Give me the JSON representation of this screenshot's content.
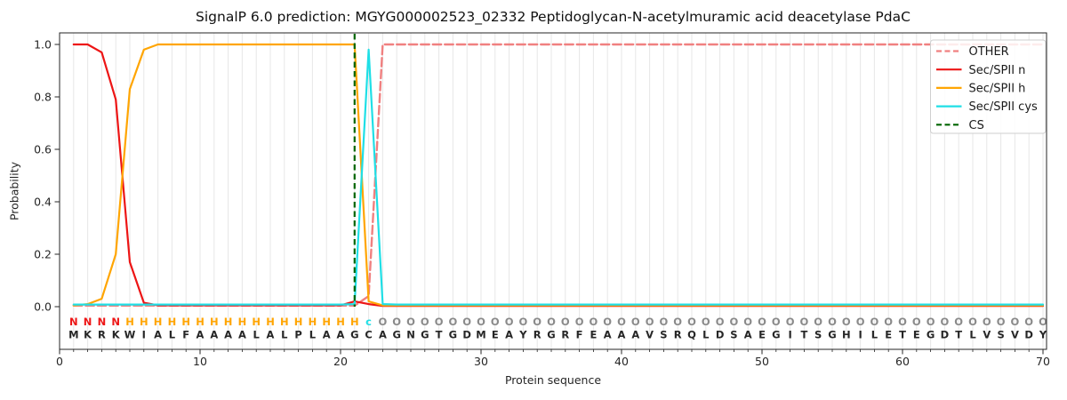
{
  "figure": {
    "title": "SignalP 6.0 prediction: MGYG000002523_02332 Peptidoglycan-N-acetylmuramic acid deacetylase PdaC",
    "xlabel": "Protein sequence",
    "ylabel": "Probability"
  },
  "colors": {
    "grid": "#e7e7e7",
    "axis": "#262626",
    "tick_label": "#262626",
    "residue": "#262626",
    "legend_border": "#cfcfcf",
    "legend_background": "#ffffff"
  },
  "legend": {
    "items": [
      {
        "label": "OTHER",
        "color": "#f08080",
        "dash": "dashed"
      },
      {
        "label": "Sec/SPII n",
        "color": "#ed1515",
        "dash": "solid"
      },
      {
        "label": "Sec/SPII h",
        "color": "#ffa502",
        "dash": "solid"
      },
      {
        "label": "Sec/SPII cys",
        "color": "#1fdfe6",
        "dash": "solid"
      },
      {
        "label": "CS",
        "color": "#006400",
        "dash": "dashed"
      }
    ]
  },
  "chart_data": {
    "type": "line",
    "title": "SignalP 6.0 prediction: MGYG000002523_02332 Peptidoglycan-N-acetylmuramic acid deacetylase PdaC",
    "xlabel": "Protein sequence",
    "ylabel": "Probability",
    "xlim": [
      0,
      70.25
    ],
    "ylim": [
      -0.16,
      1.04
    ],
    "x_ticks": [
      0,
      10,
      20,
      30,
      40,
      50,
      60,
      70
    ],
    "y_ticks": [
      0.0,
      0.2,
      0.4,
      0.6,
      0.8,
      1.0
    ],
    "grid": "vertical gridline at every residue position 1-70",
    "legend_position": "upper right",
    "x": [
      1,
      2,
      3,
      4,
      5,
      6,
      7,
      8,
      9,
      10,
      11,
      12,
      13,
      14,
      15,
      16,
      17,
      18,
      19,
      20,
      21,
      22,
      23,
      24,
      25,
      26,
      27,
      28,
      29,
      30,
      31,
      32,
      33,
      34,
      35,
      36,
      37,
      38,
      39,
      40,
      41,
      42,
      43,
      44,
      45,
      46,
      47,
      48,
      49,
      50,
      51,
      52,
      53,
      54,
      55,
      56,
      57,
      58,
      59,
      60,
      61,
      62,
      63,
      64,
      65,
      66,
      67,
      68,
      69,
      70
    ],
    "series": [
      {
        "name": "OTHER",
        "color": "#f08080",
        "dash": "dashed",
        "values": [
          0.004,
          0.004,
          0.004,
          0.004,
          0.004,
          0.004,
          0.004,
          0.004,
          0.004,
          0.004,
          0.004,
          0.004,
          0.004,
          0.004,
          0.004,
          0.004,
          0.004,
          0.004,
          0.004,
          0.004,
          0.004,
          0.04,
          1.0,
          1.0,
          1.0,
          1.0,
          1.0,
          1.0,
          1.0,
          1.0,
          1.0,
          1.0,
          1.0,
          1.0,
          1.0,
          1.0,
          1.0,
          1.0,
          1.0,
          1.0,
          1.0,
          1.0,
          1.0,
          1.0,
          1.0,
          1.0,
          1.0,
          1.0,
          1.0,
          1.0,
          1.0,
          1.0,
          1.0,
          1.0,
          1.0,
          1.0,
          1.0,
          1.0,
          1.0,
          1.0,
          1.0,
          1.0,
          1.0,
          1.0,
          1.0,
          1.0,
          1.0,
          1.0,
          1.0,
          1.0
        ]
      },
      {
        "name": "Sec/SPII n",
        "color": "#ed1515",
        "dash": "solid",
        "values": [
          1.0,
          1.0,
          0.97,
          0.79,
          0.17,
          0.015,
          0.005,
          0.005,
          0.005,
          0.005,
          0.005,
          0.005,
          0.005,
          0.005,
          0.005,
          0.005,
          0.005,
          0.005,
          0.005,
          0.005,
          0.02,
          0.01,
          0.003,
          0.003,
          0.003,
          0.003,
          0.003,
          0.003,
          0.003,
          0.003,
          0.003,
          0.003,
          0.003,
          0.003,
          0.003,
          0.003,
          0.003,
          0.003,
          0.003,
          0.003,
          0.003,
          0.003,
          0.003,
          0.003,
          0.003,
          0.003,
          0.003,
          0.003,
          0.003,
          0.003,
          0.003,
          0.003,
          0.003,
          0.003,
          0.003,
          0.003,
          0.003,
          0.003,
          0.003,
          0.003,
          0.003,
          0.003,
          0.003,
          0.003,
          0.003,
          0.003,
          0.003,
          0.003,
          0.003,
          0.003
        ]
      },
      {
        "name": "Sec/SPII h",
        "color": "#ffa502",
        "dash": "solid",
        "values": [
          0.005,
          0.01,
          0.03,
          0.2,
          0.83,
          0.98,
          1.0,
          1.0,
          1.0,
          1.0,
          1.0,
          1.0,
          1.0,
          1.0,
          1.0,
          1.0,
          1.0,
          1.0,
          1.0,
          1.0,
          1.0,
          0.02,
          0.005,
          0.005,
          0.005,
          0.005,
          0.005,
          0.005,
          0.005,
          0.005,
          0.005,
          0.005,
          0.005,
          0.005,
          0.005,
          0.005,
          0.005,
          0.005,
          0.005,
          0.005,
          0.005,
          0.005,
          0.005,
          0.005,
          0.005,
          0.005,
          0.005,
          0.005,
          0.005,
          0.005,
          0.005,
          0.005,
          0.005,
          0.005,
          0.005,
          0.005,
          0.005,
          0.005,
          0.005,
          0.005,
          0.005,
          0.005,
          0.005,
          0.005,
          0.005,
          0.005,
          0.005,
          0.005,
          0.005,
          0.005
        ]
      },
      {
        "name": "Sec/SPII cys",
        "color": "#1fdfe6",
        "dash": "solid",
        "values": [
          0.008,
          0.008,
          0.008,
          0.008,
          0.008,
          0.008,
          0.008,
          0.008,
          0.008,
          0.008,
          0.008,
          0.008,
          0.008,
          0.008,
          0.008,
          0.008,
          0.008,
          0.008,
          0.008,
          0.008,
          0.01,
          0.98,
          0.01,
          0.008,
          0.008,
          0.008,
          0.008,
          0.008,
          0.008,
          0.008,
          0.008,
          0.008,
          0.008,
          0.008,
          0.008,
          0.008,
          0.008,
          0.008,
          0.008,
          0.008,
          0.008,
          0.008,
          0.008,
          0.008,
          0.008,
          0.008,
          0.008,
          0.008,
          0.008,
          0.008,
          0.008,
          0.008,
          0.008,
          0.008,
          0.008,
          0.008,
          0.008,
          0.008,
          0.008,
          0.008,
          0.008,
          0.008,
          0.008,
          0.008,
          0.008,
          0.008,
          0.008,
          0.008,
          0.008,
          0.008
        ]
      }
    ],
    "cs_marker": {
      "name": "CS",
      "color": "#006400",
      "dash": "dashed",
      "position": 21
    },
    "sequence": "MKRKWIALFAAAALALPLAAGCAGNGTGDMEAYRGRFEAAAVSRQLDSAEGITSGHILETEGDTLVSVDY",
    "states": "NNNNHHHHHHHHHHHHHHHHHcOOOOOOOOOOOOOOOOOOOOOOOOOOOOOOOOOOOOOOOOOOOOOOOO",
    "state_colors": {
      "N": "#ed1515",
      "H": "#ffa502",
      "c": "#1fdfe6",
      "O": "#8a8a8a"
    }
  }
}
